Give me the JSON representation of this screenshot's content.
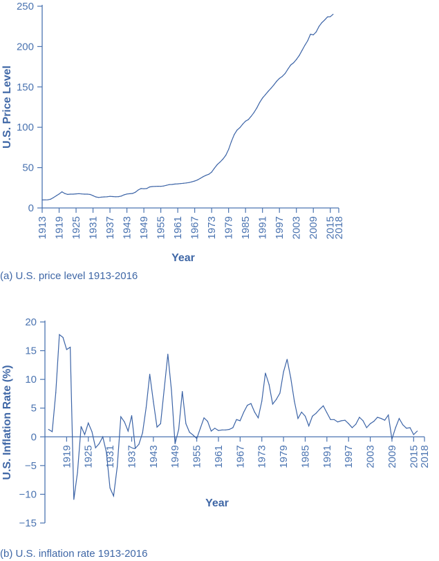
{
  "chart_data": [
    {
      "type": "line",
      "caption": "(a) U.S. price level 1913-2016",
      "xlabel": "Year",
      "ylabel": "U.S. Price Level",
      "xlim": [
        1913,
        2018
      ],
      "ylim": [
        0,
        250
      ],
      "yticks": [
        0,
        50,
        100,
        150,
        200,
        250
      ],
      "xticks": [
        "1913",
        "1919",
        "1925",
        "1931",
        "1937",
        "1943",
        "1949",
        "1955",
        "1961",
        "1967",
        "1973",
        "1979",
        "1985",
        "1991",
        "1997",
        "2003",
        "2009",
        "2015",
        "2018"
      ],
      "grid": false,
      "color": "#3b63a6",
      "x_start": 1913,
      "values": [
        9.9,
        10.0,
        10.1,
        10.9,
        12.8,
        15.1,
        17.3,
        20.0,
        17.9,
        16.8,
        17.1,
        17.1,
        17.5,
        17.7,
        17.4,
        17.1,
        17.1,
        16.7,
        15.2,
        13.7,
        13.0,
        13.4,
        13.7,
        13.9,
        14.4,
        14.1,
        13.9,
        14.0,
        14.7,
        16.3,
        17.3,
        17.6,
        18.0,
        19.5,
        22.3,
        24.1,
        23.8,
        24.1,
        26.0,
        26.5,
        26.7,
        26.9,
        26.8,
        27.2,
        28.1,
        28.9,
        29.1,
        29.6,
        29.9,
        30.2,
        30.6,
        31.0,
        31.5,
        32.4,
        33.4,
        34.8,
        36.7,
        38.8,
        40.5,
        41.8,
        44.4,
        49.3,
        53.8,
        56.9,
        60.6,
        65.2,
        72.6,
        82.4,
        90.9,
        96.5,
        99.6,
        103.9,
        107.6,
        109.6,
        113.6,
        118.3,
        124.0,
        130.7,
        136.2,
        140.3,
        144.5,
        148.2,
        152.4,
        156.9,
        160.5,
        163.0,
        166.6,
        172.2,
        177.1,
        179.9,
        184.0,
        188.9,
        195.3,
        201.6,
        207.3,
        215.3,
        214.5,
        218.1,
        224.9,
        229.6,
        233.0,
        236.7,
        237.0,
        240.0
      ]
    },
    {
      "type": "line",
      "caption": "(b) U.S. inflation rate 1913-2016",
      "xlabel": "Year",
      "ylabel": "U.S. Inflation Rate (%)",
      "xlim": [
        1913,
        2018
      ],
      "ylim": [
        -15,
        20
      ],
      "yticks": [
        -15,
        -10,
        -5,
        0,
        5,
        10,
        15,
        20
      ],
      "xticks": [
        "1919",
        "1925",
        "1931",
        "1937",
        "1943",
        "1949",
        "1955",
        "1961",
        "1967",
        "1973",
        "1979",
        "1985",
        "1991",
        "1997",
        "2003",
        "2009",
        "2015",
        "2018"
      ],
      "grid": false,
      "color": "#3b63a6",
      "x_start": 1914,
      "values": [
        1.3,
        0.9,
        7.7,
        17.8,
        17.3,
        15.2,
        15.6,
        -10.9,
        -6.2,
        1.8,
        0.4,
        2.4,
        0.9,
        -1.9,
        -1.2,
        0.0,
        -2.7,
        -8.9,
        -10.3,
        -5.2,
        3.5,
        2.6,
        1.0,
        3.7,
        -2.0,
        -1.3,
        0.7,
        5.1,
        10.9,
        6.1,
        1.7,
        2.3,
        8.3,
        14.4,
        8.1,
        -1.2,
        1.3,
        7.9,
        2.3,
        0.8,
        0.3,
        -0.3,
        1.5,
        3.3,
        2.7,
        1.0,
        1.5,
        1.1,
        1.2,
        1.2,
        1.3,
        1.6,
        3.0,
        2.8,
        4.3,
        5.5,
        5.8,
        4.3,
        3.3,
        6.2,
        11.1,
        9.1,
        5.7,
        6.5,
        7.6,
        11.3,
        13.5,
        10.3,
        6.2,
        3.2,
        4.3,
        3.6,
        1.9,
        3.6,
        4.1,
        4.8,
        5.4,
        4.2,
        3.0,
        3.0,
        2.6,
        2.8,
        2.9,
        2.3,
        1.6,
        2.2,
        3.4,
        2.8,
        1.6,
        2.3,
        2.7,
        3.4,
        3.2,
        2.9,
        3.8,
        -0.4,
        1.6,
        3.2,
        2.1,
        1.5,
        1.6,
        0.4,
        1.0
      ]
    }
  ]
}
